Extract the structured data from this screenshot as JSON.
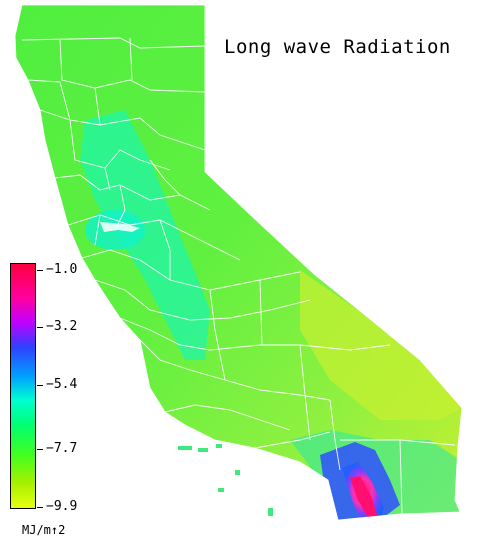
{
  "title": "Long wave Radiation",
  "legend": {
    "ticks": [
      {
        "label": "−1.0"
      },
      {
        "label": "−3.2"
      },
      {
        "label": "−5.4"
      },
      {
        "label": "−7.7"
      },
      {
        "label": "−9.9"
      }
    ],
    "unit": "MJ/m↑2",
    "min_value": -9.9,
    "max_value": -1.0,
    "colormap": [
      "#e8ff10",
      "#40ff20",
      "#00ff70",
      "#00ffd0",
      "#00a0ff",
      "#3040ff",
      "#c000ff",
      "#ff00a0",
      "#ff0040"
    ]
  },
  "map": {
    "region": "California",
    "base_color": "#6cf03c",
    "coastal_color": "#3cf088",
    "valley_color": "#20ffb0",
    "desert_color": "#c0f040",
    "county_line_color": "#ffffff",
    "low_area_color": "#2050ff",
    "lowest_area_color": "#ff2080"
  }
}
